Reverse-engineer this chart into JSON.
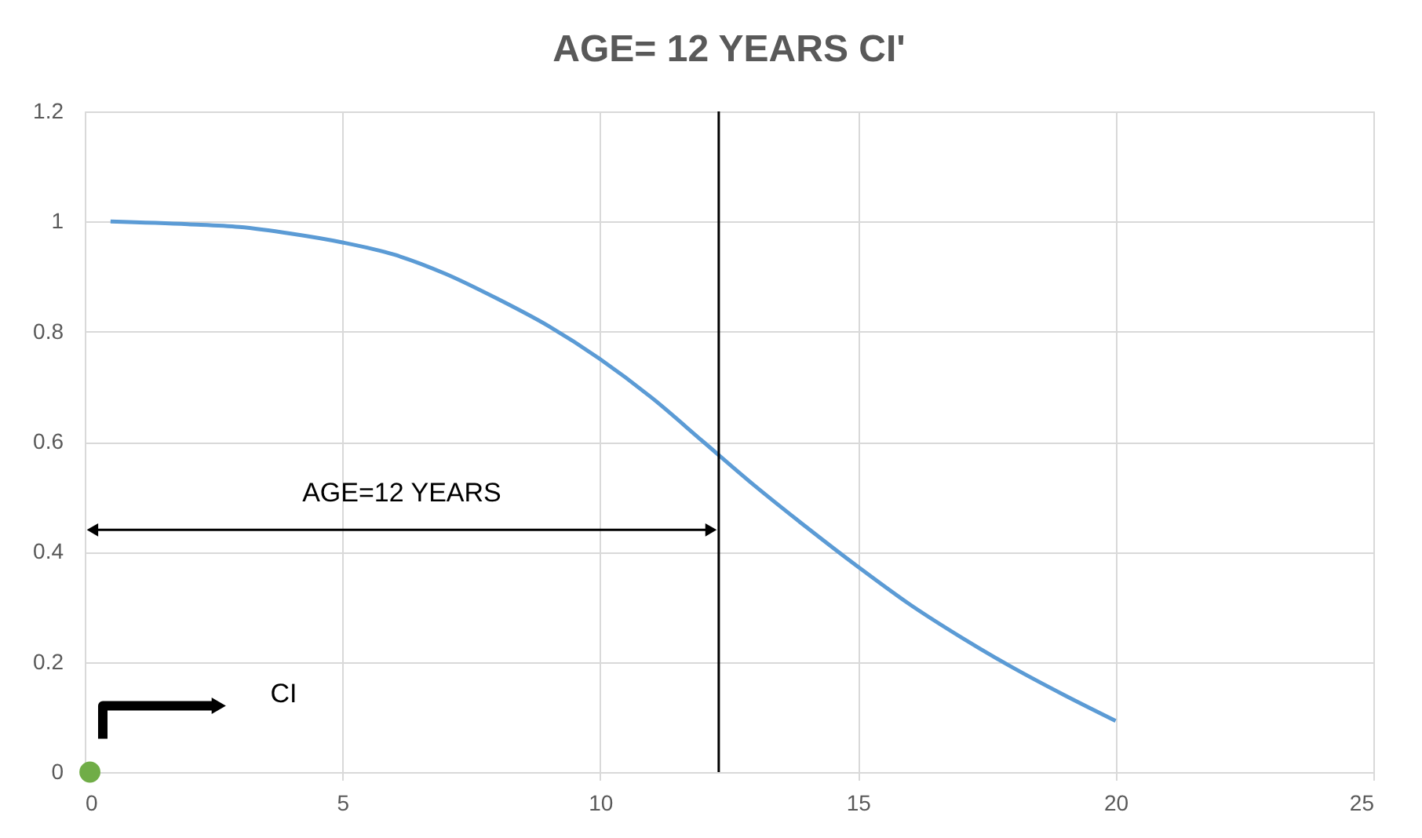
{
  "chart_data": {
    "type": "line",
    "title": "AGE= 12 YEARS CI'",
    "xlim": [
      0,
      25
    ],
    "xticks": [
      0,
      5,
      10,
      15,
      20,
      25
    ],
    "ylim": [
      0,
      1.2
    ],
    "yticks": [
      0,
      0.2,
      0.4,
      0.6,
      0.8,
      1,
      1.2
    ],
    "grid": true,
    "series": [
      {
        "color": "#5b9bd5",
        "x": [
          0.5,
          2,
          3,
          4,
          5,
          6,
          7,
          8,
          9,
          10,
          11,
          12,
          13,
          14,
          15,
          16,
          17,
          18,
          19,
          20
        ],
        "values": [
          1.0,
          0.995,
          0.99,
          0.978,
          0.962,
          0.94,
          0.905,
          0.86,
          0.81,
          0.75,
          0.68,
          0.6,
          0.52,
          0.445,
          0.373,
          0.305,
          0.245,
          0.19,
          0.14,
          0.093
        ]
      },
      {
        "type": "scatter",
        "color": "#70ad47",
        "x": [
          0.1
        ],
        "values": [
          0
        ]
      }
    ],
    "ref_lines": [
      {
        "axis": "x",
        "value": 12.3,
        "color": "#000000"
      }
    ],
    "annotations": [
      "AGE=12 YEARS",
      "CI"
    ]
  }
}
